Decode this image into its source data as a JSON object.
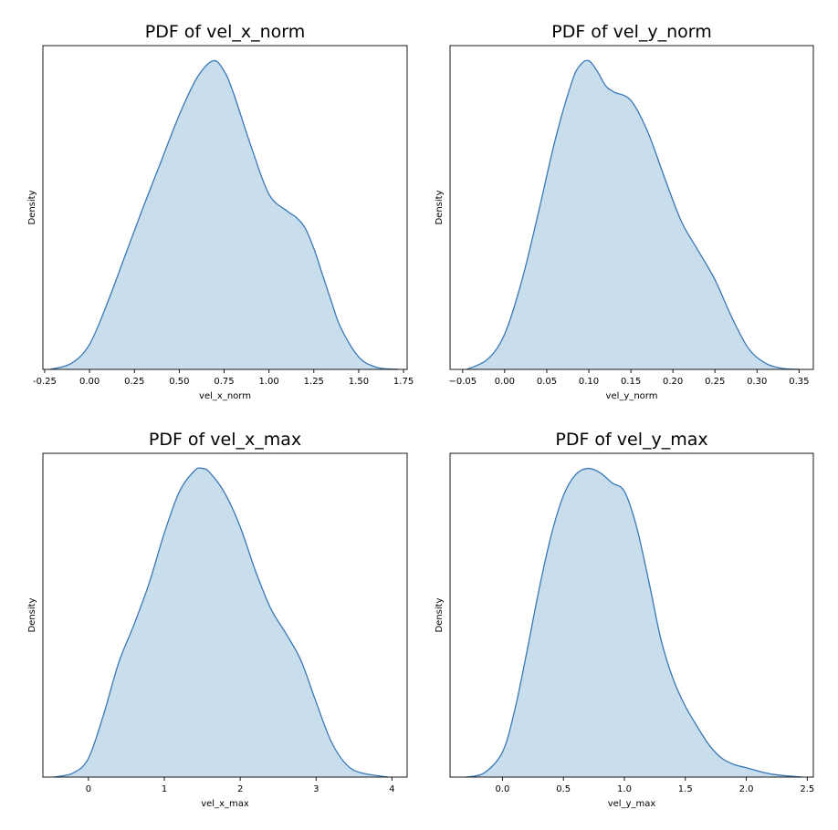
{
  "chart_data": [
    {
      "type": "area",
      "title": "PDF of vel_x_norm",
      "xlabel": "vel_x_norm",
      "ylabel": "Density",
      "xlim": [
        -0.26,
        1.77
      ],
      "y_ticks_shown": false,
      "grid": false,
      "color": "#1f77b4",
      "x_ticks": [
        "-0.25",
        "0.00",
        "0.25",
        "0.50",
        "0.75",
        "1.00",
        "1.25",
        "1.50",
        "1.75"
      ],
      "x_tick_values": [
        -0.25,
        0,
        0.25,
        0.5,
        0.75,
        1.0,
        1.25,
        1.5,
        1.75
      ],
      "x": [
        -0.22,
        -0.1,
        0.0,
        0.1,
        0.2,
        0.3,
        0.4,
        0.5,
        0.6,
        0.69,
        0.75,
        0.8,
        0.9,
        1.0,
        1.1,
        1.15,
        1.2,
        1.25,
        1.3,
        1.35,
        1.4,
        1.5,
        1.6,
        1.72
      ],
      "y": [
        0.0,
        0.03,
        0.12,
        0.32,
        0.55,
        0.78,
        1.0,
        1.22,
        1.4,
        1.48,
        1.43,
        1.33,
        1.07,
        0.84,
        0.76,
        0.73,
        0.68,
        0.58,
        0.45,
        0.32,
        0.2,
        0.06,
        0.01,
        0.0
      ]
    },
    {
      "type": "area",
      "title": "PDF of vel_y_norm",
      "xlabel": "vel_y_norm",
      "ylabel": "Density",
      "xlim": [
        -0.065,
        0.367
      ],
      "y_ticks_shown": false,
      "grid": false,
      "color": "#1f77b4",
      "x_ticks": [
        "−0.05",
        "0.00",
        "0.05",
        "0.10",
        "0.15",
        "0.20",
        "0.25",
        "0.30",
        "0.35"
      ],
      "x_tick_values": [
        -0.05,
        0,
        0.05,
        0.1,
        0.15,
        0.2,
        0.25,
        0.3,
        0.35
      ],
      "x": [
        -0.045,
        -0.02,
        0.0,
        0.02,
        0.04,
        0.06,
        0.08,
        0.09,
        0.1,
        0.11,
        0.12,
        0.13,
        0.15,
        0.17,
        0.19,
        0.21,
        0.23,
        0.25,
        0.27,
        0.29,
        0.31,
        0.33,
        0.35
      ],
      "y": [
        0.0,
        0.05,
        0.17,
        0.42,
        0.75,
        1.1,
        1.38,
        1.46,
        1.48,
        1.43,
        1.36,
        1.33,
        1.29,
        1.14,
        0.92,
        0.71,
        0.57,
        0.43,
        0.25,
        0.1,
        0.03,
        0.005,
        0.0
      ]
    },
    {
      "type": "area",
      "title": "PDF of vel_x_max",
      "xlabel": "vel_x_max",
      "ylabel": "Density",
      "xlim": [
        -0.6,
        4.2
      ],
      "y_ticks_shown": false,
      "grid": false,
      "color": "#1f77b4",
      "x_ticks": [
        "0",
        "1",
        "2",
        "3",
        "4"
      ],
      "x_tick_values": [
        0,
        1,
        2,
        3,
        4
      ],
      "x": [
        -0.45,
        -0.2,
        0.0,
        0.2,
        0.4,
        0.6,
        0.8,
        1.0,
        1.2,
        1.4,
        1.5,
        1.6,
        1.8,
        2.0,
        2.2,
        2.4,
        2.6,
        2.8,
        3.0,
        3.2,
        3.4,
        3.6,
        3.95
      ],
      "y": [
        0.0,
        0.02,
        0.09,
        0.3,
        0.55,
        0.73,
        0.93,
        1.17,
        1.37,
        1.47,
        1.48,
        1.46,
        1.36,
        1.2,
        0.99,
        0.81,
        0.69,
        0.56,
        0.36,
        0.17,
        0.06,
        0.02,
        0.0
      ]
    },
    {
      "type": "area",
      "title": "PDF of vel_y_max",
      "xlabel": "vel_y_max",
      "ylabel": "Density",
      "xlim": [
        -0.43,
        2.55
      ],
      "y_ticks_shown": false,
      "grid": false,
      "color": "#1f77b4",
      "x_ticks": [
        "0.0",
        "0.5",
        "1.0",
        "1.5",
        "2.0",
        "2.5"
      ],
      "x_tick_values": [
        0,
        0.5,
        1.0,
        1.5,
        2.0,
        2.5
      ],
      "x": [
        -0.3,
        -0.15,
        0.0,
        0.1,
        0.2,
        0.3,
        0.4,
        0.5,
        0.6,
        0.7,
        0.8,
        0.9,
        1.0,
        1.1,
        1.2,
        1.3,
        1.4,
        1.5,
        1.6,
        1.7,
        1.8,
        1.9,
        2.0,
        2.2,
        2.45
      ],
      "y": [
        0.0,
        0.02,
        0.12,
        0.32,
        0.6,
        0.9,
        1.16,
        1.35,
        1.45,
        1.48,
        1.46,
        1.41,
        1.37,
        1.2,
        0.94,
        0.66,
        0.47,
        0.34,
        0.24,
        0.15,
        0.09,
        0.06,
        0.045,
        0.015,
        0.0
      ]
    }
  ]
}
